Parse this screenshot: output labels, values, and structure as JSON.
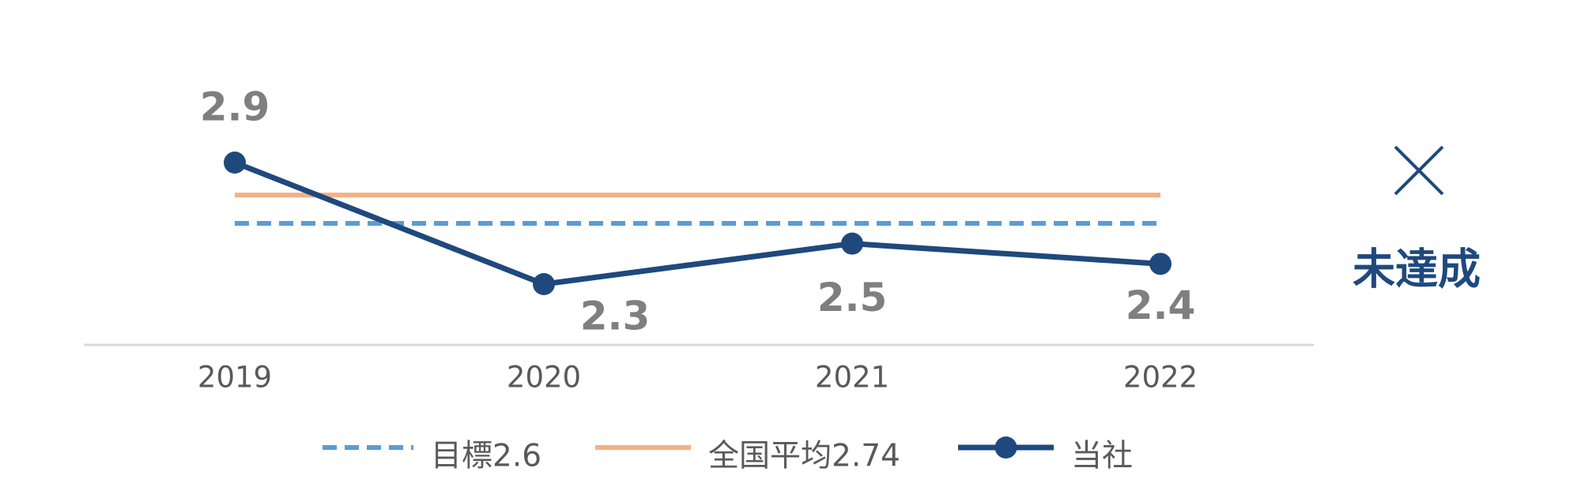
{
  "chart_data": {
    "type": "line",
    "categories": [
      "2019",
      "2020",
      "2021",
      "2022"
    ],
    "series": [
      {
        "name": "目標2.6",
        "color": "#5b9bd5",
        "dashed": true,
        "values": [
          2.6,
          2.6,
          2.6,
          2.6
        ]
      },
      {
        "name": "全国平均2.74",
        "color": "#f4b183",
        "values": [
          2.74,
          2.74,
          2.74,
          2.74
        ]
      },
      {
        "name": "当社",
        "color": "#1f497d",
        "markers": true,
        "values": [
          2.9,
          2.3,
          2.5,
          2.4
        ],
        "show_value_labels": true
      }
    ],
    "ylim": [
      2,
      3.2
    ],
    "legend": "bottom",
    "annotation": "未達成"
  }
}
